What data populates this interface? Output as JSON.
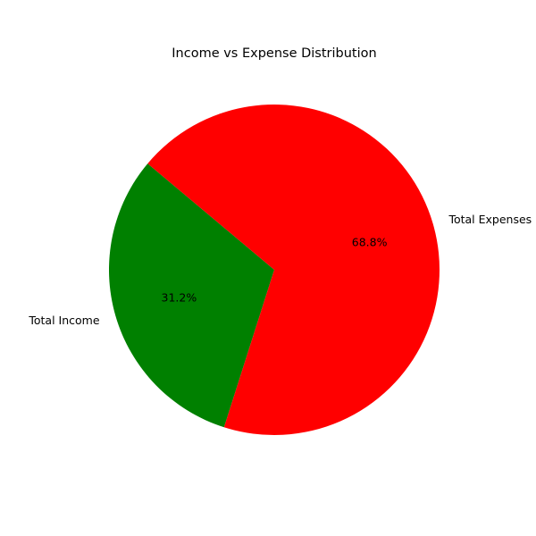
{
  "chart_data": {
    "type": "pie",
    "title": "Income vs Expense Distribution",
    "start_angle_deg": 140,
    "direction": "counterclockwise",
    "slices": [
      {
        "label": "Total Income",
        "value": 31.2,
        "pct_label": "31.2%",
        "color": "#008000"
      },
      {
        "label": "Total Expenses",
        "value": 68.8,
        "pct_label": "68.8%",
        "color": "#ff0000"
      }
    ]
  }
}
